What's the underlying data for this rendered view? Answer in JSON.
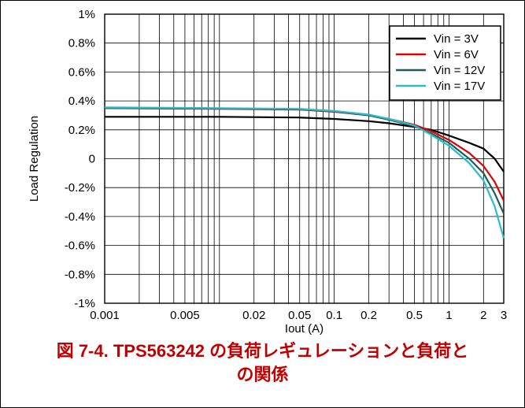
{
  "caption": {
    "line1": "図 7-4. TPS563242 の負荷レギュレーションと負荷と",
    "line2": "の関係"
  },
  "chart_data": {
    "type": "line",
    "xlabel": "Iout (A)",
    "ylabel": "Load Regulation",
    "xscale": "log",
    "xlim": [
      0.001,
      3
    ],
    "ylim": [
      -1,
      1
    ],
    "xticks": [
      0.001,
      0.005,
      0.02,
      0.05,
      0.1,
      0.2,
      0.5,
      1,
      2,
      3
    ],
    "xtick_labels": [
      "0.001",
      "0.005",
      "0.02",
      "0.05",
      "0.1",
      "0.2",
      "0.5",
      "1",
      "2",
      "3"
    ],
    "yticks": [
      1,
      0.8,
      0.6,
      0.4,
      0.2,
      0,
      -0.2,
      -0.4,
      -0.6,
      -0.8,
      -1
    ],
    "ytick_labels": [
      "1%",
      "0.8%",
      "0.6%",
      "0.4%",
      "0.2%",
      "0",
      "-0.2%",
      "-0.4%",
      "-0.6%",
      "-0.8%",
      "-1%"
    ],
    "grid": true,
    "legend_position": "top-right",
    "x": [
      0.001,
      0.01,
      0.05,
      0.1,
      0.2,
      0.3,
      0.5,
      0.7,
      1,
      1.5,
      2,
      2.5,
      3
    ],
    "series": [
      {
        "name": "Vin = 3V",
        "color": "#000000",
        "values": [
          0.29,
          0.29,
          0.285,
          0.275,
          0.26,
          0.245,
          0.22,
          0.2,
          0.16,
          0.11,
          0.07,
          0.0,
          -0.09
        ]
      },
      {
        "name": "Vin = 6V",
        "color": "#e00000",
        "values": [
          0.35,
          0.345,
          0.34,
          0.325,
          0.3,
          0.275,
          0.235,
          0.19,
          0.13,
          0.04,
          -0.05,
          -0.16,
          -0.29
        ]
      },
      {
        "name": "Vin = 12V",
        "color": "#1f5c5c",
        "values": [
          0.35,
          0.347,
          0.342,
          0.328,
          0.3,
          0.27,
          0.225,
          0.175,
          0.11,
          0.0,
          -0.1,
          -0.24,
          -0.38
        ]
      },
      {
        "name": "Vin = 17V",
        "color": "#2bbccc",
        "values": [
          0.355,
          0.35,
          0.345,
          0.33,
          0.305,
          0.275,
          0.23,
          0.165,
          0.09,
          -0.03,
          -0.15,
          -0.33,
          -0.55
        ]
      }
    ]
  }
}
